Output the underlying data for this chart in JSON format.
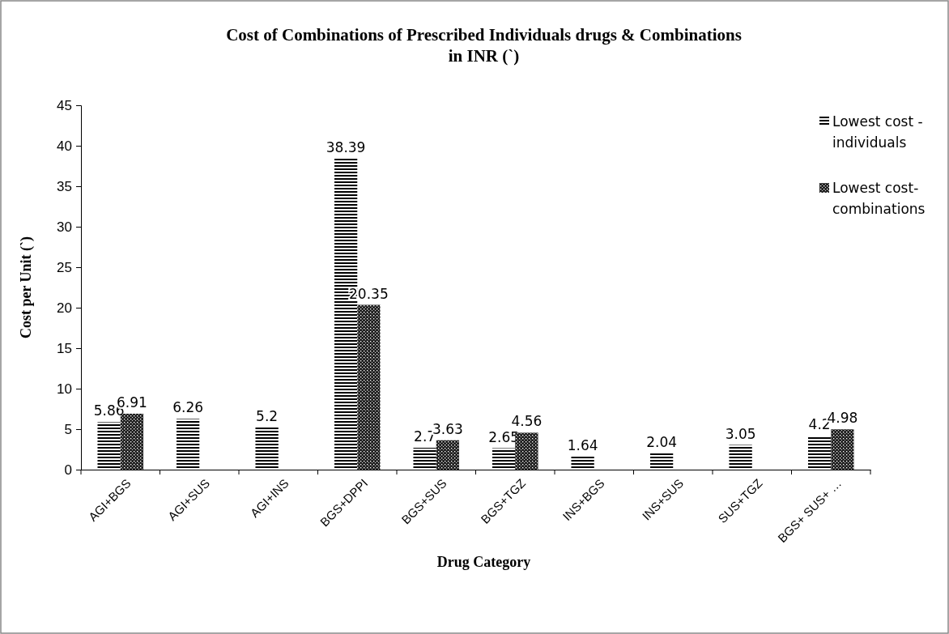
{
  "chart_data": {
    "type": "bar",
    "title": "Cost of Combinations of Prescribed Individuals drugs & Combinations in INR (`)",
    "xlabel": "Drug Category",
    "ylabel": "Cost per Unit (`)",
    "categories": [
      "AGI+BGS",
      "AGI+SUS",
      "AGI+INS",
      "BGS+DPPI",
      "BGS+SUS",
      "BGS+TGZ",
      "INS+BGS",
      "INS+SUS",
      "SUS+TGZ",
      "BGS+  SUS+ …"
    ],
    "series": [
      {
        "name": "Lowest cost - individuals",
        "color": "#000000",
        "values": [
          5.86,
          6.26,
          5.2,
          38.39,
          2.7,
          2.65,
          1.64,
          2.04,
          3.05,
          4.2
        ]
      },
      {
        "name": "Lowest cost- combinations",
        "color": "#222222",
        "values": [
          6.91,
          null,
          null,
          20.35,
          3.63,
          4.56,
          null,
          null,
          null,
          4.98
        ]
      }
    ],
    "ylim": [
      0,
      45
    ],
    "yticks": [
      0,
      5,
      10,
      15,
      20,
      25,
      30,
      35,
      40,
      45
    ],
    "grid": false,
    "legend": "top right",
    "data_labels": true
  }
}
